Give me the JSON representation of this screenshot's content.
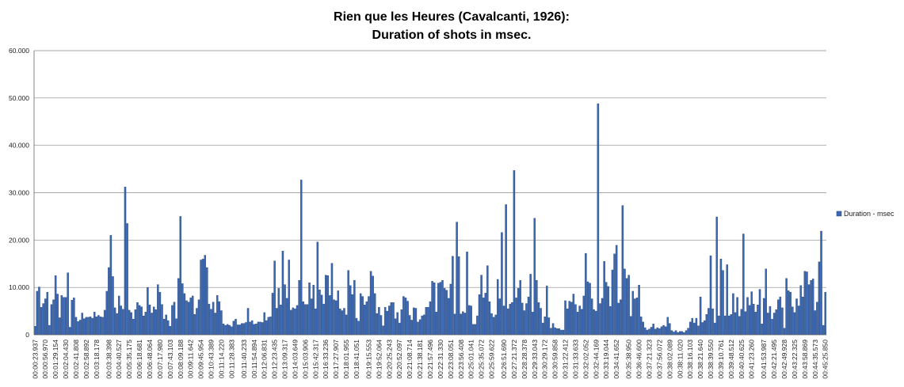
{
  "chart_data": {
    "type": "bar",
    "title": [
      "Rien que les Heures (Cavalcanti, 1926):",
      "Duration of shots in msec."
    ],
    "xlabel": "",
    "ylabel": "",
    "ylim": [
      0,
      60000
    ],
    "y_ticks": [
      "0",
      "10.000",
      "20.000",
      "30.000",
      "40.000",
      "50.000",
      "60.000"
    ],
    "grid": "horizontal",
    "legend_position": "right",
    "colors": {
      "bar": "#3b68b0",
      "bar_edge": "#1f3f77",
      "grid": "#8a8a8a",
      "axis": "#666666"
    },
    "x_tick_labels": [
      "00:00:23.937",
      "00:00:56.970",
      "00:01:29.154",
      "00:02:04.430",
      "00:02:41.808",
      "00:02:58.892",
      "00:03:18.178",
      "00:03:38.398",
      "00:04:40.527",
      "00:05:35.175",
      "00:06:18.681",
      "00:06:48.064",
      "00:07:17.980",
      "00:07:43.103",
      "00:08:09.188",
      "00:09:11.642",
      "00:09:45.954",
      "00:10:43.389",
      "00:11:14.220",
      "00:11:28.383",
      "00:11:40.233",
      "00:11:54.894",
      "00:12:06.831",
      "00:12:23.435",
      "00:13:09.317",
      "00:14:03.649",
      "00:15:03.906",
      "00:15:42.317",
      "00:16:33.236",
      "00:17:27.907",
      "00:18:01.955",
      "00:18:41.051",
      "00:19:15.553",
      "00:19:52.064",
      "00:20:25.243",
      "00:20:52.097",
      "00:21:08.714",
      "00:21:38.181",
      "00:21:57.496",
      "00:22:31.330",
      "00:23:08.051",
      "00:23:56.408",
      "00:25:01.041",
      "00:25:35.072",
      "00:25:59.622",
      "00:26:51.690",
      "00:27:21.372",
      "00:28:28.378",
      "00:29:33.043",
      "00:30:29.172",
      "00:30:59.858",
      "00:31:22.412",
      "00:31:33.633",
      "00:32:02.052",
      "00:32:44.169",
      "00:33:19.044",
      "00:34:41.652",
      "00:35:38.950",
      "00:36:46.600",
      "00:37:21.323",
      "00:37:56.072",
      "00:38:02.089",
      "00:38:11.020",
      "00:38:16.103",
      "00:38:21.640",
      "00:38:39.550",
      "00:39:10.761",
      "00:39:48.512",
      "00:40:40.625",
      "00:41:23.260",
      "00:41:53.987",
      "00:42:21.495",
      "00:42:49.928",
      "00:43:22.325",
      "00:43:58.869",
      "00:44:35.573",
      "00:45:25.850"
    ],
    "series": [
      {
        "name": "Duration - msec",
        "values": [
          1800,
          9200,
          10100,
          5800,
          6600,
          7600,
          9000,
          2000,
          6400,
          7400,
          12500,
          8600,
          3600,
          8300,
          7900,
          7900,
          13100,
          1600,
          7300,
          7800,
          3700,
          2800,
          3100,
          4600,
          3400,
          3700,
          3700,
          3800,
          3500,
          4800,
          3800,
          4100,
          3800,
          3700,
          5200,
          9200,
          14200,
          21000,
          12300,
          5700,
          4500,
          8200,
          6100,
          5400,
          31200,
          23500,
          5200,
          4700,
          3300,
          5300,
          6800,
          6200,
          5900,
          4000,
          4800,
          10000,
          6300,
          4600,
          5900,
          5300,
          10600,
          9000,
          6400,
          3300,
          4200,
          3000,
          1800,
          6200,
          6900,
          3400,
          11900,
          25000,
          10800,
          8700,
          7200,
          6900,
          7800,
          8200,
          4300,
          5600,
          7400,
          15800,
          16000,
          16800,
          14200,
          6500,
          5400,
          6900,
          4600,
          8300,
          7000,
          5100,
          2300,
          2000,
          2200,
          2000,
          1700,
          2900,
          3300,
          2100,
          2100,
          2400,
          2400,
          2600,
          5600,
          2700,
          3000,
          2200,
          2300,
          2700,
          2700,
          2600,
          4700,
          3000,
          3700,
          3800,
          8800,
          15600,
          5600,
          9800,
          6300,
          17700,
          10600,
          7700,
          15800,
          5200,
          5700,
          5500,
          6200,
          11500,
          32700,
          7000,
          6400,
          6400,
          11000,
          7600,
          10500,
          5500,
          19600,
          9500,
          8400,
          6500,
          12600,
          12500,
          8300,
          15100,
          7400,
          7200,
          9300,
          5500,
          5100,
          5600,
          4200,
          13600,
          10400,
          8500,
          11500,
          3500,
          2900,
          8700,
          8100,
          6300,
          7000,
          8100,
          13400,
          12400,
          8700,
          4500,
          5800,
          4100,
          1900,
          5800,
          5000,
          6100,
          6800,
          6800,
          3400,
          4700,
          2500,
          5300,
          8100,
          7800,
          7100,
          4100,
          3100,
          5700,
          5600,
          2700,
          3200,
          4000,
          4200,
          5800,
          5800,
          7000,
          11300,
          11000,
          4800,
          10900,
          11100,
          11500,
          9800,
          9400,
          7700,
          10700,
          16600,
          4400,
          23800,
          16500,
          4400,
          4900,
          4600,
          17500,
          6200,
          6100,
          2200,
          2200,
          4000,
          8500,
          12600,
          7800,
          8800,
          14600,
          7000,
          4500,
          3700,
          4200,
          11700,
          7600,
          21600,
          6100,
          27500,
          5500,
          6500,
          6800,
          34700,
          7800,
          9800,
          11500,
          6700,
          5100,
          6600,
          8000,
          12800,
          4800,
          24600,
          11500,
          6800,
          5600,
          2500,
          3800,
          10300,
          3600,
          1400,
          2400,
          1500,
          1300,
          1300,
          1000,
          1000,
          7200,
          5500,
          7100,
          6900,
          8600,
          6400,
          4800,
          6100,
          5400,
          8200,
          17200,
          11200,
          10900,
          7600,
          5300,
          5000,
          48800,
          6600,
          7700,
          15500,
          11100,
          10200,
          6000,
          13700,
          17100,
          18900,
          6700,
          7400,
          27300,
          13900,
          11900,
          12600,
          3900,
          9200,
          7600,
          7800,
          10500,
          3800,
          2700,
          1500,
          1000,
          1200,
          1600,
          2300,
          1200,
          1500,
          1300,
          1700,
          2000,
          1700,
          3700,
          2400,
          900,
          600,
          900,
          500,
          700,
          700,
          500,
          900,
          1400,
          2700,
          3500,
          2500,
          3500,
          1900,
          8000,
          2600,
          3000,
          4300,
          5600,
          16700,
          5500,
          2500,
          24900,
          4000,
          16000,
          13600,
          4000,
          14800,
          4000,
          4300,
          8700,
          4700,
          7900,
          3900,
          5400,
          21300,
          4900,
          7900,
          6200,
          9100,
          6500,
          4800,
          6300,
          9600,
          2300,
          7700,
          13900,
          4600,
          6000,
          3300,
          4600,
          5300,
          7400,
          8000,
          5700,
          1400,
          11900,
          9300,
          9000,
          5900,
          4700,
          7600,
          6100,
          10400,
          8000,
          13400,
          13300,
          10600,
          11500,
          11800,
          5100,
          6900,
          15400,
          21900,
          2000,
          9000
        ]
      }
    ]
  }
}
